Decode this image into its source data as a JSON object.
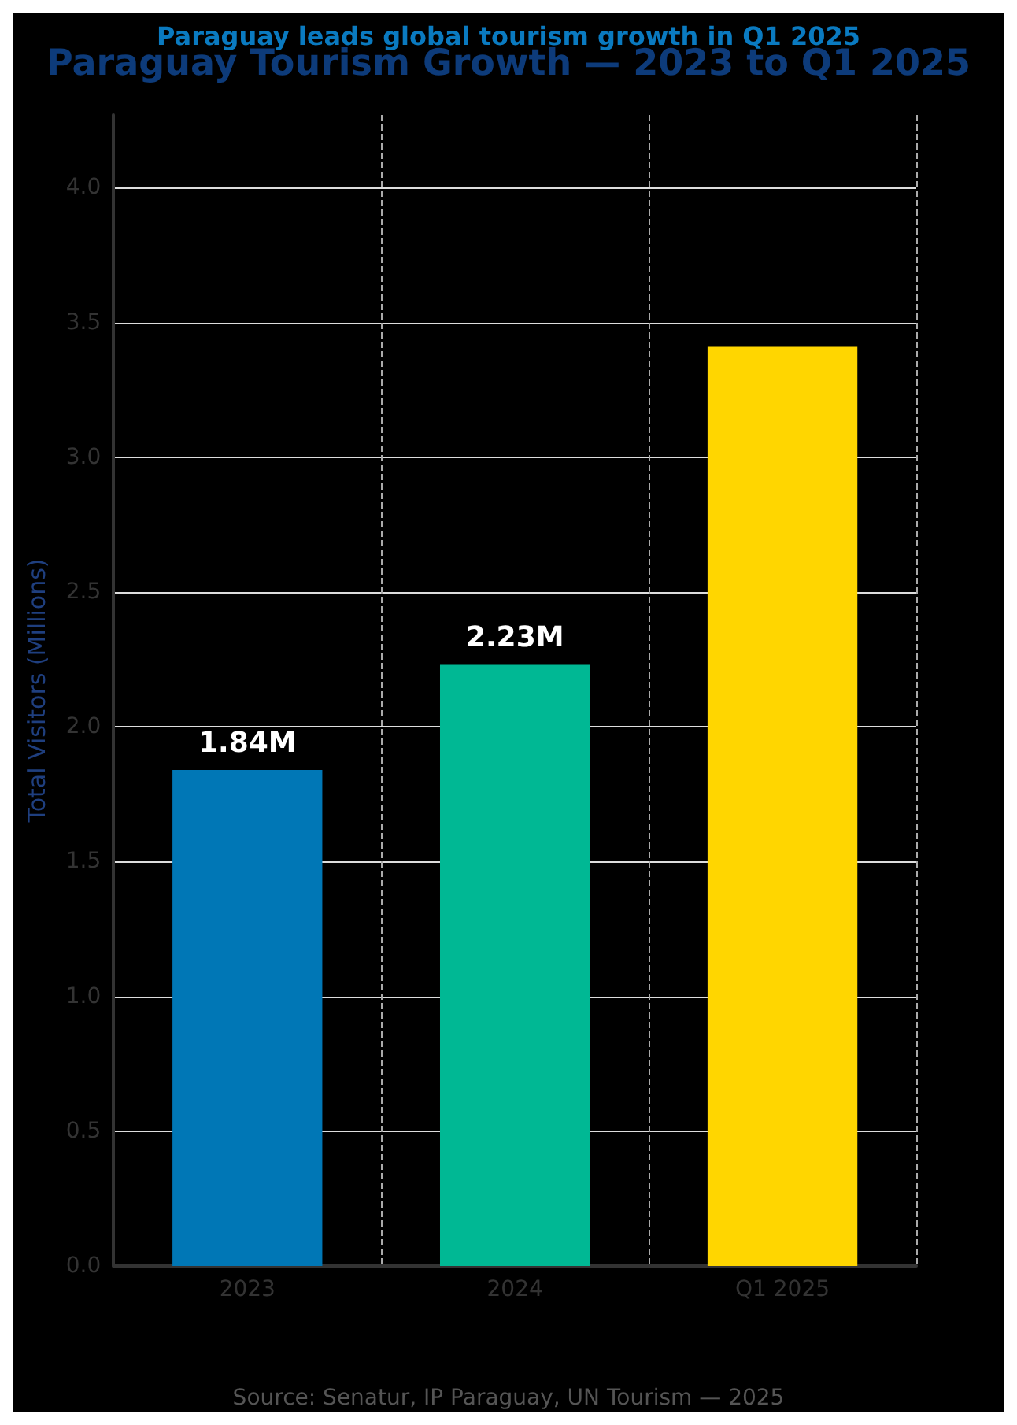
{
  "chart_data": {
    "type": "bar",
    "title": "Paraguay Tourism Growth — 2023 to Q1 2025",
    "subtitle": "Paraguay leads global tourism growth in Q1 2025",
    "ylabel": "Total Visitors (Millions)",
    "categories": [
      "2023",
      "2024",
      "Q1 2025"
    ],
    "values": [
      1.84,
      2.23,
      3.41
    ],
    "colors": [
      "#0077b6",
      "#00b894",
      "#ffd600"
    ],
    "value_labels": [
      "1.84M",
      "2.23M",
      null
    ],
    "ylim": [
      0,
      4.27
    ],
    "yticks": [
      {
        "value": 0,
        "label": "0.0"
      },
      0.5,
      {
        "value": 1,
        "label": "1.0"
      },
      1.5,
      {
        "value": 2,
        "label": "2.0"
      },
      2.5,
      {
        "value": 3,
        "label": "3.0"
      },
      3.5,
      {
        "value": 4,
        "label": "4.0"
      }
    ],
    "grid": true,
    "annotations": [
      "Source: Senatur, IP Paraguay, UN Tourism — 2025"
    ]
  }
}
